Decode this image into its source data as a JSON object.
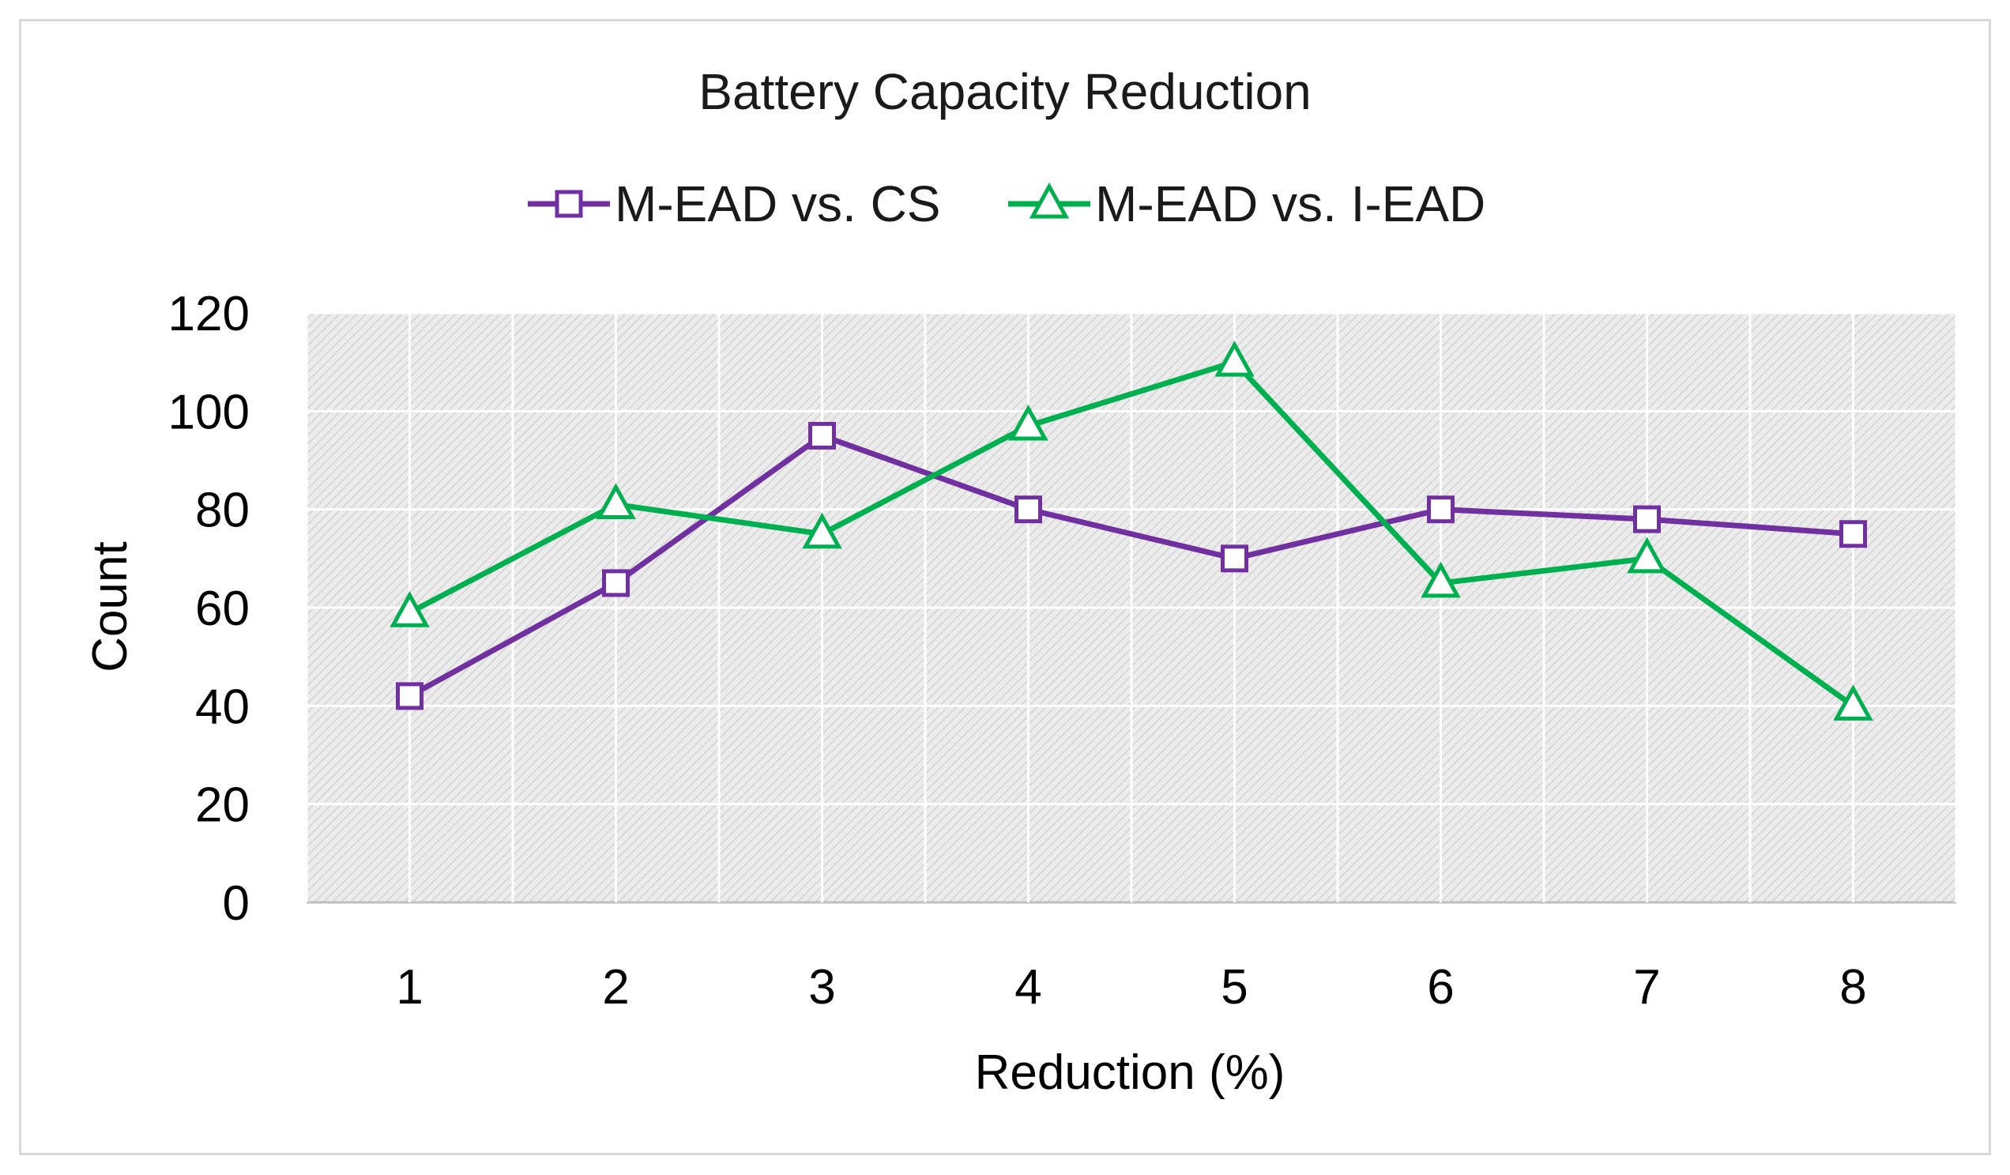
{
  "chart_data": {
    "type": "line",
    "title": "Battery Capacity Reduction",
    "xlabel": "Reduction (%)",
    "ylabel": "Count",
    "categories": [
      "1",
      "2",
      "3",
      "4",
      "5",
      "6",
      "7",
      "8"
    ],
    "ylim": [
      0,
      120
    ],
    "yticks": [
      "0",
      "20",
      "40",
      "60",
      "80",
      "100",
      "120"
    ],
    "grid": true,
    "legend_position": "top",
    "series": [
      {
        "name": "M-EAD vs. CS",
        "marker": "square",
        "color": "#7030a0",
        "values": [
          42,
          65,
          95,
          80,
          70,
          80,
          78,
          75
        ]
      },
      {
        "name": "M-EAD vs. I-EAD",
        "marker": "triangle",
        "color": "#00b050",
        "values": [
          59,
          81,
          75,
          97,
          110,
          65,
          70,
          40
        ]
      }
    ]
  }
}
